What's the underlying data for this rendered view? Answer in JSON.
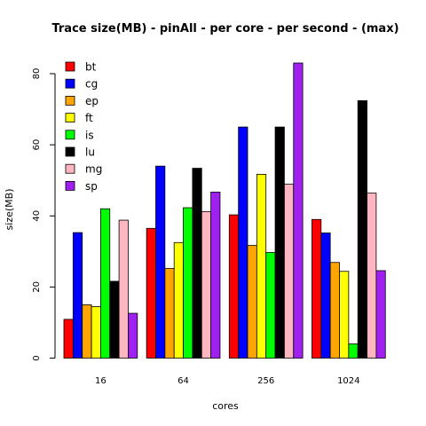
{
  "chart_data": {
    "type": "bar",
    "title": "Trace size(MB) - pinAll - per core - per second - (max)",
    "xlabel": "cores",
    "ylabel": "size(MB)",
    "ylim": [
      0,
      83
    ],
    "yticks": [
      0,
      20,
      40,
      60,
      80
    ],
    "categories": [
      "16",
      "64",
      "256",
      "1024"
    ],
    "legend_position": "top-left",
    "grid": false,
    "series": [
      {
        "name": "bt",
        "color": "#ff0000",
        "values": [
          10.9,
          36.5,
          40.3,
          39.0
        ]
      },
      {
        "name": "cg",
        "color": "#0000ff",
        "values": [
          35.3,
          54.0,
          65.0,
          35.2
        ]
      },
      {
        "name": "ep",
        "color": "#ffa500",
        "values": [
          15.0,
          25.2,
          31.7,
          26.9
        ]
      },
      {
        "name": "ft",
        "color": "#ffff00",
        "values": [
          14.5,
          32.5,
          51.7,
          24.4
        ]
      },
      {
        "name": "is",
        "color": "#00ff00",
        "values": [
          42.0,
          42.3,
          29.7,
          4.0
        ]
      },
      {
        "name": "lu",
        "color": "#000000",
        "values": [
          21.6,
          53.4,
          65.0,
          72.4
        ]
      },
      {
        "name": "mg",
        "color": "#ffb6c1",
        "values": [
          38.8,
          41.2,
          48.9,
          46.4
        ]
      },
      {
        "name": "sp",
        "color": "#a020f0",
        "values": [
          12.6,
          46.7,
          83.0,
          24.6
        ]
      }
    ]
  }
}
